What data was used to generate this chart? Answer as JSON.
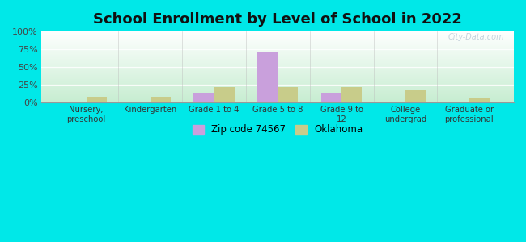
{
  "title": "School Enrollment by Level of School in 2022",
  "categories": [
    "Nursery,\npreschool",
    "Kindergarten",
    "Grade 1 to 4",
    "Grade 5 to 8",
    "Grade 9 to\n12",
    "College\nundergrad",
    "Graduate or\nprofessional"
  ],
  "zip_values": [
    0.0,
    0.0,
    13.0,
    70.0,
    13.0,
    0.0,
    0.0
  ],
  "ok_values": [
    8.0,
    8.0,
    21.0,
    21.0,
    22.0,
    18.0,
    6.0
  ],
  "zip_color": "#c9a0dc",
  "ok_color": "#c8cc8a",
  "background_outer": "#00e8e8",
  "title_fontsize": 13,
  "legend_labels": [
    "Zip code 74567",
    "Oklahoma"
  ],
  "ylim": [
    0,
    100
  ],
  "yticks": [
    0,
    25,
    50,
    75,
    100
  ],
  "bar_width": 0.32,
  "watermark": "City-Data.com"
}
